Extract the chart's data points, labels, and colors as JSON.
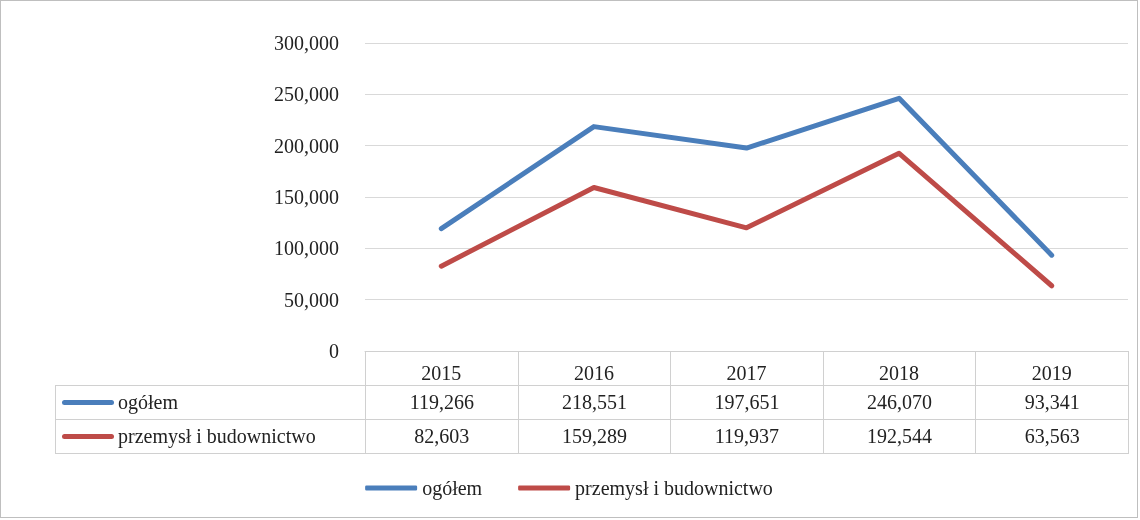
{
  "chart_data": {
    "type": "line",
    "categories": [
      "2015",
      "2016",
      "2017",
      "2018",
      "2019"
    ],
    "series": [
      {
        "name": "ogółem",
        "color": "#4a7ebb",
        "values": [
          119266,
          218551,
          197651,
          246070,
          93341
        ],
        "value_labels": [
          "119,266",
          "218,551",
          "197,651",
          "246,070",
          "93,341"
        ]
      },
      {
        "name": "przemysł i budownictwo",
        "color": "#be4b48",
        "values": [
          82603,
          159289,
          119937,
          192544,
          63563
        ],
        "value_labels": [
          "82,603",
          "159,289",
          "119,937",
          "192,544",
          "63,563"
        ]
      }
    ],
    "ylim": [
      0,
      300000
    ],
    "yticks": [
      0,
      {
        "value": 50000,
        "label": "50,000"
      },
      {
        "value": 100000,
        "label": "100,000"
      },
      {
        "value": 150000,
        "label": "150,000"
      },
      {
        "value": 200000,
        "label": "200,000"
      },
      {
        "value": 250000,
        "label": "250,000"
      },
      {
        "value": 300000,
        "label": "300,000"
      }
    ],
    "grid": "y",
    "legend": "bottom",
    "marker": "none",
    "line_style": "solid"
  }
}
